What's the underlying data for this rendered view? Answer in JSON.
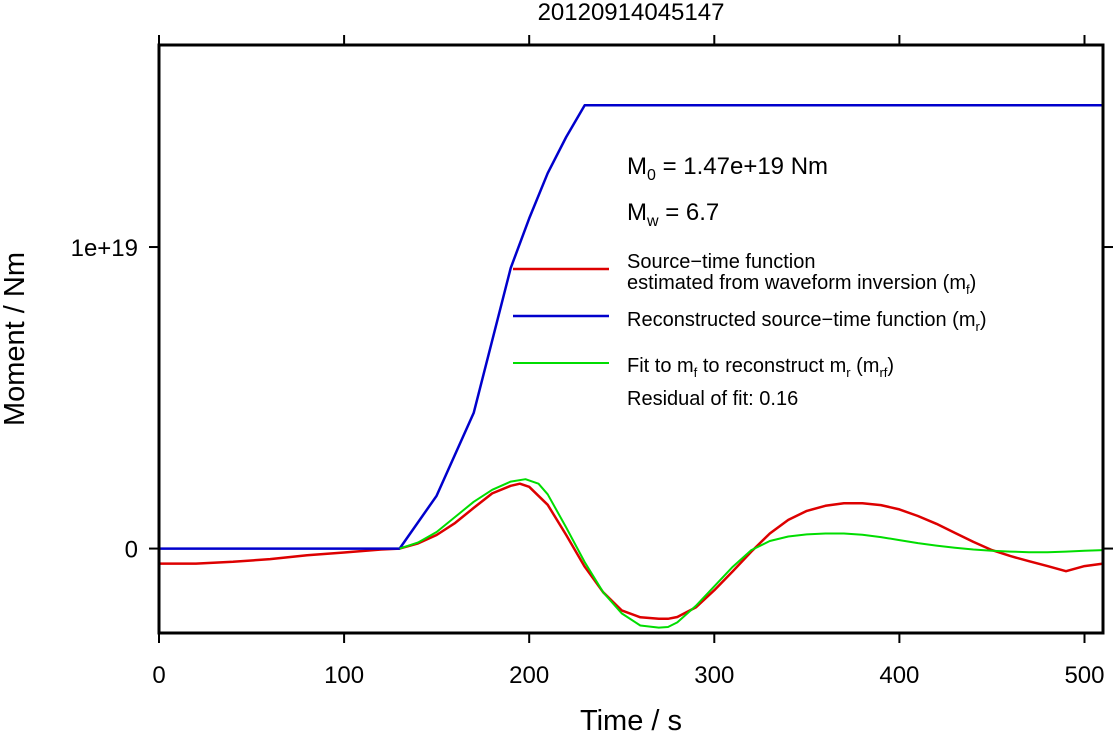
{
  "chart_data": {
    "type": "line",
    "title": "20120914045147",
    "xlabel": "Time / s",
    "ylabel": "Moment / Nm",
    "xlim": [
      0,
      510
    ],
    "ylim": [
      -2.8e+18,
      1.67e+19
    ],
    "x_ticks": [
      0,
      100,
      200,
      300,
      400,
      500
    ],
    "x_tick_labels": [
      "0",
      "100",
      "200",
      "300",
      "400",
      "500"
    ],
    "y_ticks": [
      0,
      1e+19
    ],
    "y_tick_labels": [
      "0",
      "1e+19"
    ],
    "grid": false,
    "legend_position": "top-right",
    "annotations": {
      "m0": {
        "symbol": "M",
        "sub": "0",
        "text": " = 1.47e+19 Nm"
      },
      "mw": {
        "symbol": "M",
        "sub": "w",
        "text": " = 6.7"
      },
      "residual": "Residual of fit: 0.16"
    },
    "legend": [
      {
        "color": "#dd0000",
        "line1": "Source−time function",
        "line2_pre": "estimated from waveform inversion (m",
        "line2_sub": "f",
        "line2_post": ")"
      },
      {
        "color": "#0000cc",
        "pre": "Reconstructed source−time function (m",
        "sub": "r",
        "post": ")"
      },
      {
        "color": "#00dd00",
        "pre": "Fit to m",
        "sub1": "f",
        "mid": " to reconstruct m",
        "sub2": "r",
        "mid2": " (m",
        "sub3": "rf",
        "post": ")"
      }
    ],
    "series": [
      {
        "color": "#dd0000",
        "x": [
          0,
          20,
          40,
          60,
          80,
          100,
          120,
          130,
          140,
          150,
          160,
          170,
          180,
          190,
          195,
          200,
          210,
          220,
          230,
          240,
          250,
          260,
          270,
          275,
          280,
          290,
          300,
          310,
          320,
          330,
          340,
          350,
          360,
          370,
          380,
          390,
          400,
          410,
          420,
          430,
          440,
          450,
          460,
          470,
          480,
          490,
          500,
          510
        ],
        "y": [
          -5e+17,
          -5e+17,
          -4.4e+17,
          -3.5e+17,
          -2.2e+17,
          -1.3e+17,
          -3e+16,
          0,
          1.7e+17,
          4.5e+17,
          8.5e+17,
          1.35e+18,
          1.83e+18,
          2.08e+18,
          2.15e+18,
          2.05e+18,
          1.45e+18,
          4.5e+17,
          -6e+17,
          -1.45e+18,
          -2.05e+18,
          -2.28e+18,
          -2.33e+18,
          -2.33e+18,
          -2.27e+18,
          -1.95e+18,
          -1.38e+18,
          -7.5e+17,
          -1e+17,
          5e+17,
          9.5e+17,
          1.25e+18,
          1.42e+18,
          1.5e+18,
          1.5e+18,
          1.44e+18,
          1.3e+18,
          1.08e+18,
          8.2e+17,
          5.2e+17,
          2.2e+17,
          -5e+16,
          -2.5e+17,
          -4.2e+17,
          -5.8e+17,
          -7.5e+17,
          -5.8e+17,
          -5e+17
        ]
      },
      {
        "color": "#0000cc",
        "x": [
          0,
          100,
          130,
          150,
          170,
          190,
          200,
          210,
          220,
          230,
          300,
          400,
          510
        ],
        "y": [
          0,
          0,
          0,
          1.75e+18,
          4.5e+18,
          9.3e+18,
          1.095e+19,
          1.245e+19,
          1.365e+19,
          1.47e+19,
          1.47e+19,
          1.47e+19,
          1.47e+19
        ]
      },
      {
        "color": "#00dd00",
        "x": [
          130,
          140,
          150,
          160,
          170,
          180,
          190,
          198,
          205,
          210,
          220,
          230,
          240,
          250,
          260,
          270,
          275,
          280,
          290,
          300,
          310,
          320,
          330,
          340,
          350,
          360,
          370,
          380,
          390,
          400,
          410,
          420,
          430,
          440,
          450,
          460,
          470,
          480,
          490,
          500,
          510
        ],
        "y": [
          0,
          2e+17,
          5.5e+17,
          1.05e+18,
          1.55e+18,
          1.95e+18,
          2.22e+18,
          2.3e+18,
          2.15e+18,
          1.8e+18,
          7e+17,
          -4.5e+17,
          -1.45e+18,
          -2.15e+18,
          -2.55e+18,
          -2.62e+18,
          -2.6e+18,
          -2.45e+18,
          -1.9e+18,
          -1.25e+18,
          -6e+17,
          -5e+16,
          2.5e+17,
          4e+17,
          4.7e+17,
          5e+17,
          5e+17,
          4.6e+17,
          3.8e+17,
          2.8e+17,
          1.8e+17,
          1e+17,
          3e+16,
          -3e+16,
          -7e+16,
          -1e+17,
          -1.2e+17,
          -1.2e+17,
          -1e+17,
          -7e+16,
          -5e+16
        ]
      }
    ]
  }
}
